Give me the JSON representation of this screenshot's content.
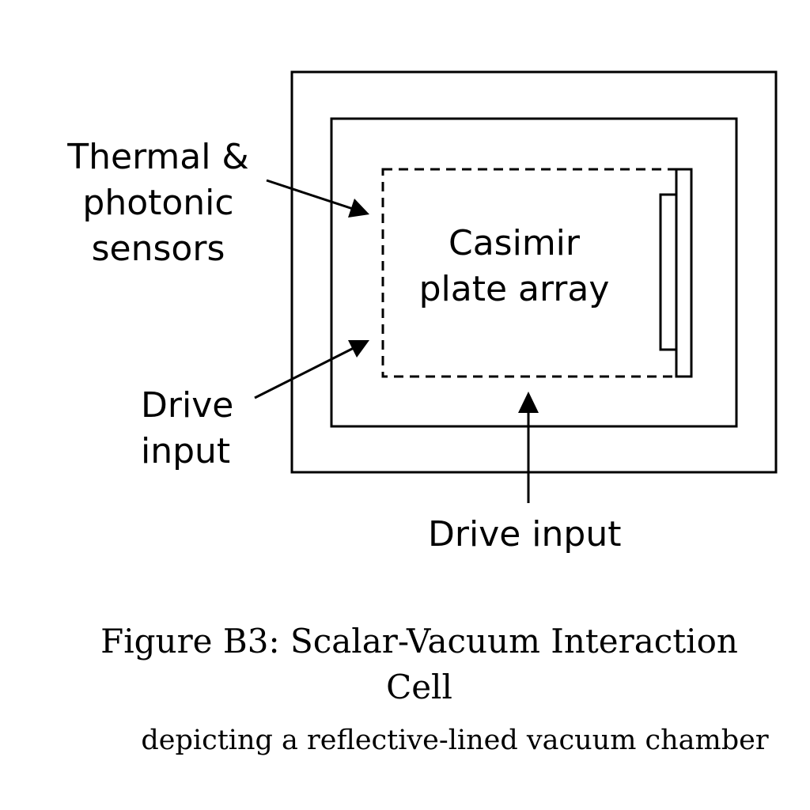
{
  "diagram": {
    "sensor_label_line1": "Thermal &",
    "sensor_label_line2": "photonic",
    "sensor_label_line3": "sensors",
    "array_label_line1": "Casimir",
    "array_label_line2": "plate array",
    "drive_left_line1": "Drive",
    "drive_left_line2": "input",
    "drive_bottom": "Drive input"
  },
  "caption": {
    "title_line1": "Figure B3: Scalar-Vacuum Interaction",
    "title_line2": "Cell",
    "subtitle": "depicting a reflective-lined vacuum chamber"
  }
}
